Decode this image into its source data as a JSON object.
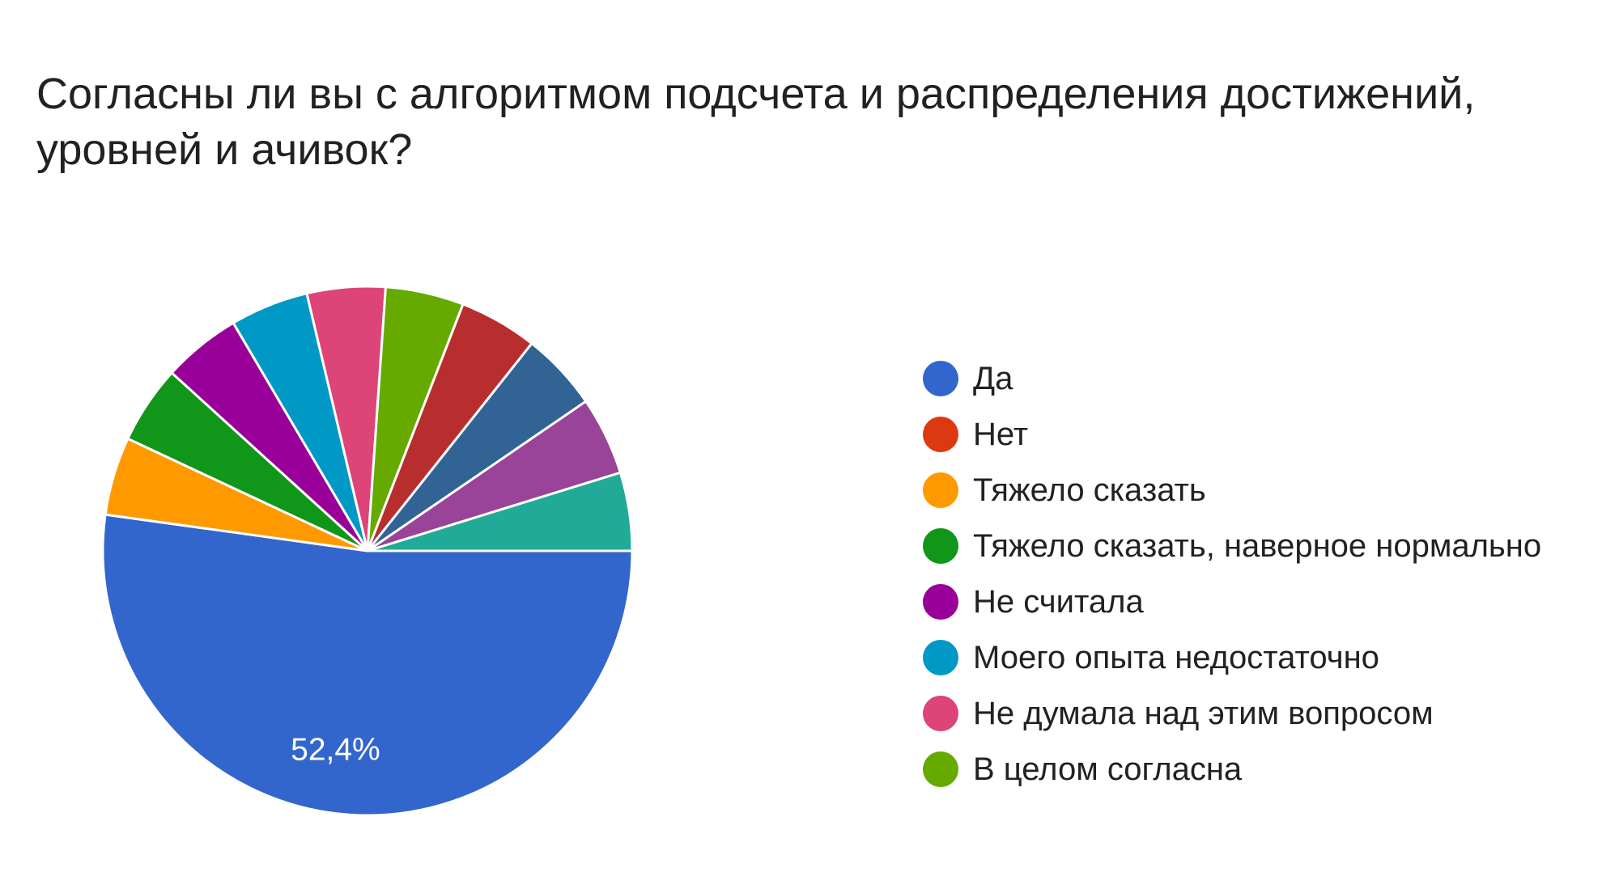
{
  "chart_data": {
    "type": "pie",
    "title": "Согласны ли вы с алгоритмом подсчета и распределения достижений,\nуровней и ачивок?",
    "slices": [
      {
        "label": "Да",
        "value": 52.4,
        "color": "#3366cc",
        "data_label": "52,4%"
      },
      {
        "label": "Нет",
        "value": 0,
        "color": "#dc3912"
      },
      {
        "label": "Тяжело сказать",
        "value": 4.8,
        "color": "#ff9900"
      },
      {
        "label": "Тяжело сказать, наверное нормально",
        "value": 4.8,
        "color": "#109618"
      },
      {
        "label": "Не считала",
        "value": 4.8,
        "color": "#990099"
      },
      {
        "label": "Моего опыта недостаточно",
        "value": 4.8,
        "color": "#0099c6"
      },
      {
        "label": "Не думала над этим вопросом",
        "value": 4.8,
        "color": "#dd4477"
      },
      {
        "label": "В целом согласна",
        "value": 4.8,
        "color": "#66aa00"
      },
      {
        "label": "",
        "value": 4.8,
        "color": "#b82e2e"
      },
      {
        "label": "",
        "value": 4.8,
        "color": "#316395"
      },
      {
        "label": "",
        "value": 4.8,
        "color": "#994499"
      },
      {
        "label": "",
        "value": 4.8,
        "color": "#22aa99"
      }
    ],
    "legend_position": "right"
  }
}
